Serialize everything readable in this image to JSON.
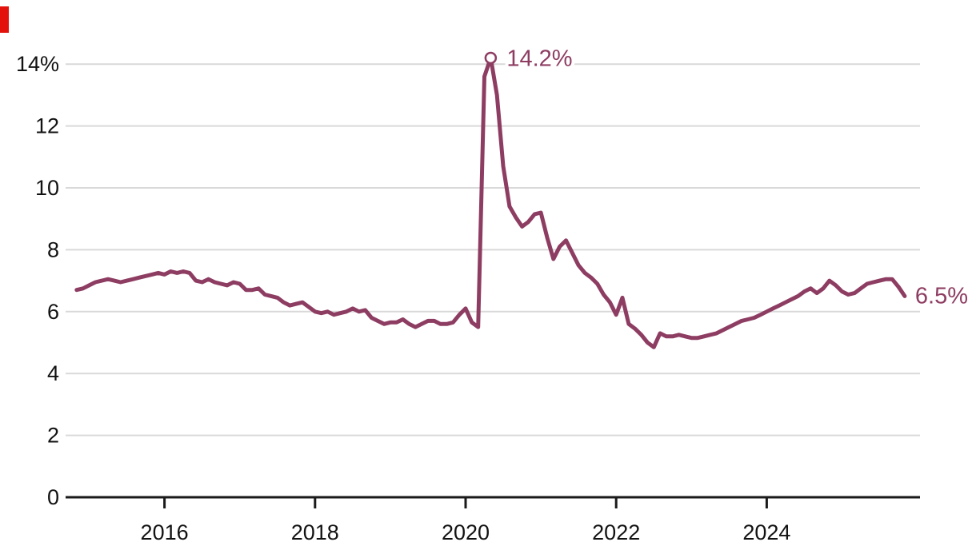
{
  "branding": {
    "tab_color": "#e3120b"
  },
  "chart_data": {
    "type": "line",
    "title": "",
    "xlabel": "",
    "ylabel": "",
    "unit": "%",
    "line_color": "#8e3d62",
    "grid_color": "#d9d9d9",
    "axis_color": "#1a1a1a",
    "tick_text_color": "#121212",
    "grid": true,
    "legend_position": "none",
    "xlim": [
      2014.67,
      2026.05
    ],
    "ylim": [
      0,
      14.9
    ],
    "yticks": [
      0,
      2,
      4,
      6,
      8,
      10,
      12,
      14
    ],
    "ytick_labels": [
      "0",
      "2",
      "4",
      "6",
      "8",
      "10",
      "12",
      "14%"
    ],
    "xticks": [
      2016,
      2018,
      2020,
      2022,
      2024
    ],
    "xtick_labels": [
      "2016",
      "2018",
      "2020",
      "2022",
      "2024"
    ],
    "series": [
      {
        "name": "rate",
        "start_year": 2014,
        "start_month": 11,
        "frequency": "monthly",
        "values": [
          6.7,
          6.75,
          6.85,
          6.95,
          7.0,
          7.05,
          7.0,
          6.95,
          7.0,
          7.05,
          7.1,
          7.15,
          7.2,
          7.25,
          7.2,
          7.3,
          7.25,
          7.3,
          7.25,
          7.0,
          6.95,
          7.05,
          6.95,
          6.9,
          6.85,
          6.95,
          6.9,
          6.7,
          6.7,
          6.75,
          6.55,
          6.5,
          6.45,
          6.3,
          6.2,
          6.25,
          6.3,
          6.15,
          6.0,
          5.95,
          6.0,
          5.9,
          5.95,
          6.0,
          6.1,
          6.0,
          6.05,
          5.8,
          5.7,
          5.6,
          5.65,
          5.65,
          5.75,
          5.6,
          5.5,
          5.6,
          5.7,
          5.7,
          5.6,
          5.6,
          5.65,
          5.9,
          6.1,
          5.65,
          5.5,
          13.6,
          14.2,
          13.0,
          10.7,
          9.4,
          9.05,
          8.75,
          8.9,
          9.15,
          9.2,
          8.4,
          7.7,
          8.1,
          8.3,
          7.9,
          7.5,
          7.25,
          7.1,
          6.9,
          6.55,
          6.3,
          5.9,
          6.45,
          5.6,
          5.45,
          5.25,
          5.0,
          4.85,
          5.3,
          5.2,
          5.2,
          5.25,
          5.2,
          5.15,
          5.15,
          5.2,
          5.25,
          5.3,
          5.4,
          5.5,
          5.6,
          5.7,
          5.75,
          5.8,
          5.9,
          6.0,
          6.1,
          6.2,
          6.3,
          6.4,
          6.5,
          6.65,
          6.75,
          6.6,
          6.75,
          7.0,
          6.85,
          6.65,
          6.55,
          6.6,
          6.75,
          6.9,
          6.95,
          7.0,
          7.05,
          7.05,
          6.8,
          6.5
        ]
      }
    ],
    "annotations": [
      {
        "text": "14.2%",
        "x": 2020.3333,
        "y": 14.2,
        "marker": "open-circle"
      },
      {
        "text": "6.5%",
        "x": 2025.8333,
        "y": 6.5,
        "marker": "none"
      }
    ]
  }
}
